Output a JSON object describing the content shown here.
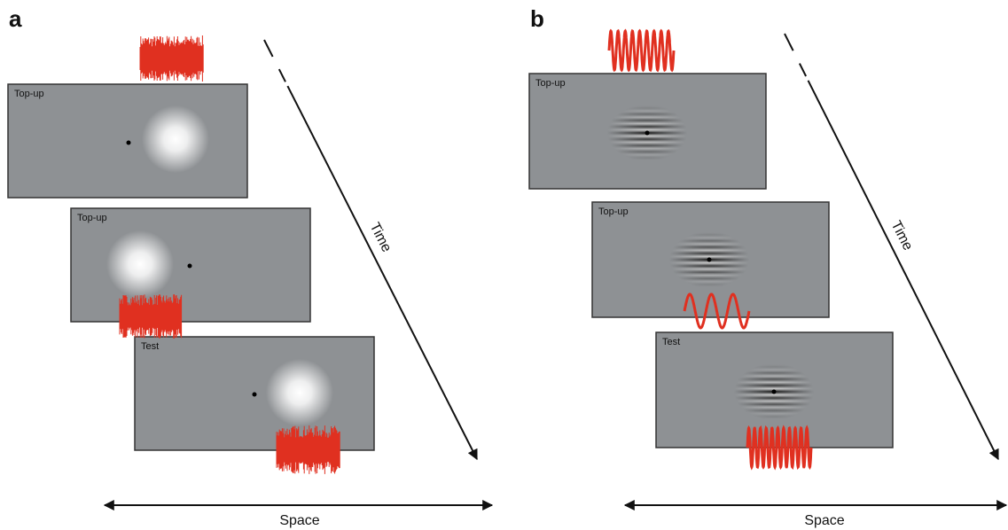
{
  "panels": [
    {
      "label": "a",
      "frames": [
        {
          "label": "Top-up"
        },
        {
          "label": "Top-up"
        },
        {
          "label": "Test"
        }
      ],
      "time_label": "Time",
      "space_label": "Space"
    },
    {
      "label": "b",
      "frames": [
        {
          "label": "Top-up"
        },
        {
          "label": "Top-up"
        },
        {
          "label": "Test"
        }
      ],
      "time_label": "Time",
      "space_label": "Space"
    }
  ]
}
